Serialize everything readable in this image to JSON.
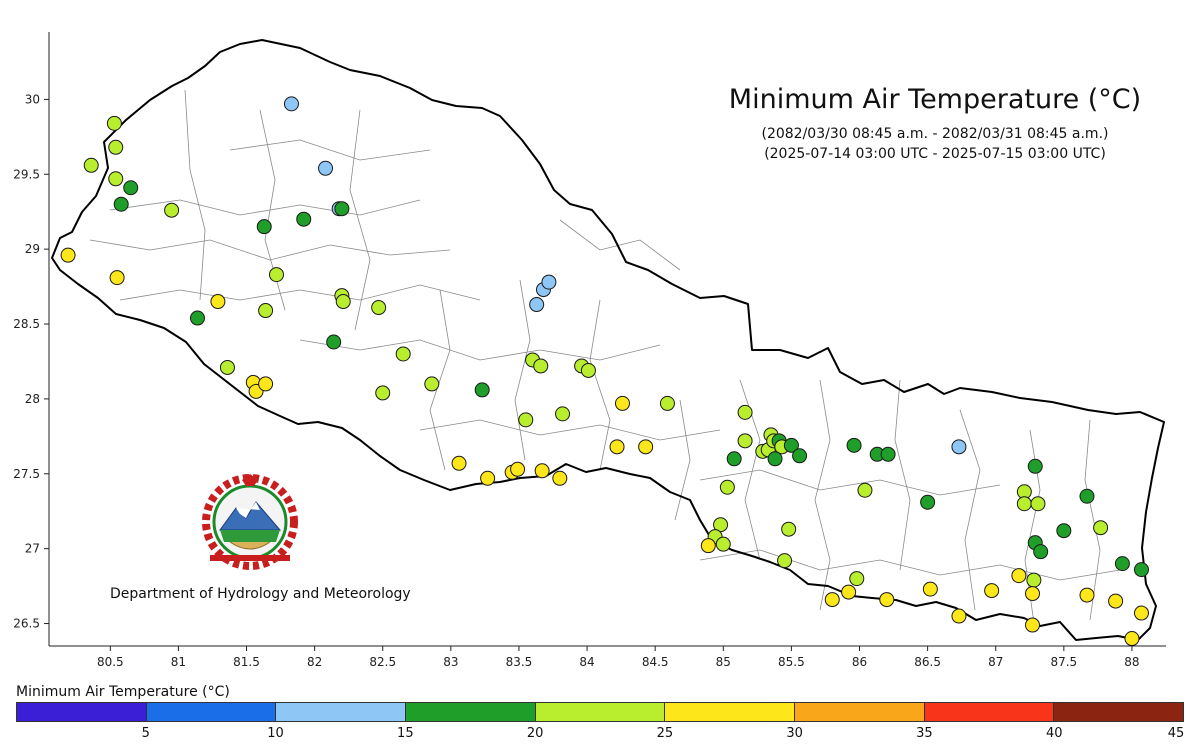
{
  "title": "Minimum Air Temperature (°C)",
  "subtitle_nepali": "(2082/03/30 08:45 a.m. - 2082/03/31 08:45 a.m.)",
  "subtitle_utc": "(2025-07-14 03:00 UTC - 2025-07-15 03:00 UTC)",
  "credit": "Department of Hydrology and Meteorology",
  "legend": {
    "title": "Minimum Air Temperature (°C)",
    "bins": [
      {
        "min": 0,
        "max": 5,
        "color": "#3a1fd6"
      },
      {
        "min": 5,
        "max": 10,
        "color": "#1a6fe8"
      },
      {
        "min": 10,
        "max": 15,
        "color": "#8ec6f5"
      },
      {
        "min": 15,
        "max": 20,
        "color": "#1f9e2a"
      },
      {
        "min": 20,
        "max": 25,
        "color": "#b8ee2e"
      },
      {
        "min": 25,
        "max": 30,
        "color": "#fde619"
      },
      {
        "min": 30,
        "max": 35,
        "color": "#f9a61a"
      },
      {
        "min": 35,
        "max": 40,
        "color": "#f8341a"
      },
      {
        "min": 40,
        "max": 45,
        "color": "#8b2512"
      }
    ],
    "tick_labels": [
      "5",
      "10",
      "15",
      "20",
      "25",
      "30",
      "35",
      "40",
      "45"
    ]
  },
  "axes": {
    "x_ticks": [
      80.5,
      81,
      81.5,
      82,
      82.5,
      83,
      83.5,
      84,
      84.5,
      85,
      85.5,
      86,
      86.5,
      87,
      87.5,
      88
    ],
    "x_tick_labels": [
      "80.5",
      "81",
      "81.5",
      "82",
      "82.5",
      "83",
      "83.5",
      "84",
      "84.5",
      "85",
      "85.5",
      "86",
      "86.5",
      "87",
      "87.5",
      "88"
    ],
    "y_ticks": [
      26.5,
      27,
      27.5,
      28,
      28.5,
      29,
      29.5,
      30
    ],
    "y_tick_labels": [
      "26.5",
      "27",
      "27.5",
      "28",
      "28.5",
      "29",
      "29.5",
      "30"
    ],
    "xlim": [
      80.05,
      88.25
    ],
    "ylim": [
      26.35,
      30.45
    ]
  },
  "map_data": {
    "type": "scatter",
    "units": "lon/lat",
    "stations": [
      {
        "lon": 81.83,
        "lat": 29.97,
        "bin": 2
      },
      {
        "lon": 82.08,
        "lat": 29.54,
        "bin": 2
      },
      {
        "lon": 82.18,
        "lat": 29.27,
        "bin": 2
      },
      {
        "lon": 82.2,
        "lat": 29.27,
        "bin": 3
      },
      {
        "lon": 83.63,
        "lat": 28.63,
        "bin": 2
      },
      {
        "lon": 83.68,
        "lat": 28.73,
        "bin": 2
      },
      {
        "lon": 83.72,
        "lat": 28.78,
        "bin": 2
      },
      {
        "lon": 86.73,
        "lat": 27.68,
        "bin": 2
      },
      {
        "lon": 80.53,
        "lat": 29.84,
        "bin": 4
      },
      {
        "lon": 80.54,
        "lat": 29.68,
        "bin": 4
      },
      {
        "lon": 80.36,
        "lat": 29.56,
        "bin": 4
      },
      {
        "lon": 80.54,
        "lat": 29.47,
        "bin": 4
      },
      {
        "lon": 80.65,
        "lat": 29.41,
        "bin": 3
      },
      {
        "lon": 80.58,
        "lat": 29.3,
        "bin": 3
      },
      {
        "lon": 80.95,
        "lat": 29.26,
        "bin": 4
      },
      {
        "lon": 81.63,
        "lat": 29.15,
        "bin": 3
      },
      {
        "lon": 81.92,
        "lat": 29.2,
        "bin": 3
      },
      {
        "lon": 80.19,
        "lat": 28.96,
        "bin": 5
      },
      {
        "lon": 80.55,
        "lat": 28.81,
        "bin": 5
      },
      {
        "lon": 81.72,
        "lat": 28.83,
        "bin": 4
      },
      {
        "lon": 82.2,
        "lat": 28.69,
        "bin": 4
      },
      {
        "lon": 82.21,
        "lat": 28.65,
        "bin": 4
      },
      {
        "lon": 82.47,
        "lat": 28.61,
        "bin": 4
      },
      {
        "lon": 81.29,
        "lat": 28.65,
        "bin": 5
      },
      {
        "lon": 81.64,
        "lat": 28.59,
        "bin": 4
      },
      {
        "lon": 81.14,
        "lat": 28.54,
        "bin": 3
      },
      {
        "lon": 82.14,
        "lat": 28.38,
        "bin": 3
      },
      {
        "lon": 82.65,
        "lat": 28.3,
        "bin": 4
      },
      {
        "lon": 81.36,
        "lat": 28.21,
        "bin": 4
      },
      {
        "lon": 81.55,
        "lat": 28.11,
        "bin": 5
      },
      {
        "lon": 81.57,
        "lat": 28.05,
        "bin": 5
      },
      {
        "lon": 81.64,
        "lat": 28.1,
        "bin": 5
      },
      {
        "lon": 82.5,
        "lat": 28.04,
        "bin": 4
      },
      {
        "lon": 82.86,
        "lat": 28.1,
        "bin": 4
      },
      {
        "lon": 83.23,
        "lat": 28.06,
        "bin": 3
      },
      {
        "lon": 83.6,
        "lat": 28.26,
        "bin": 4
      },
      {
        "lon": 83.66,
        "lat": 28.22,
        "bin": 4
      },
      {
        "lon": 83.96,
        "lat": 28.22,
        "bin": 4
      },
      {
        "lon": 84.01,
        "lat": 28.19,
        "bin": 4
      },
      {
        "lon": 83.55,
        "lat": 27.86,
        "bin": 4
      },
      {
        "lon": 83.82,
        "lat": 27.9,
        "bin": 4
      },
      {
        "lon": 84.26,
        "lat": 27.97,
        "bin": 5
      },
      {
        "lon": 84.59,
        "lat": 27.97,
        "bin": 4
      },
      {
        "lon": 83.06,
        "lat": 27.57,
        "bin": 5
      },
      {
        "lon": 83.27,
        "lat": 27.47,
        "bin": 5
      },
      {
        "lon": 83.45,
        "lat": 27.51,
        "bin": 5
      },
      {
        "lon": 83.49,
        "lat": 27.53,
        "bin": 5
      },
      {
        "lon": 83.67,
        "lat": 27.52,
        "bin": 5
      },
      {
        "lon": 83.8,
        "lat": 27.47,
        "bin": 5
      },
      {
        "lon": 84.22,
        "lat": 27.68,
        "bin": 5
      },
      {
        "lon": 84.43,
        "lat": 27.68,
        "bin": 5
      },
      {
        "lon": 85.16,
        "lat": 27.91,
        "bin": 4
      },
      {
        "lon": 85.16,
        "lat": 27.72,
        "bin": 4
      },
      {
        "lon": 85.08,
        "lat": 27.6,
        "bin": 3
      },
      {
        "lon": 85.29,
        "lat": 27.65,
        "bin": 4
      },
      {
        "lon": 85.33,
        "lat": 27.66,
        "bin": 4
      },
      {
        "lon": 85.35,
        "lat": 27.76,
        "bin": 4
      },
      {
        "lon": 85.37,
        "lat": 27.72,
        "bin": 4
      },
      {
        "lon": 85.41,
        "lat": 27.72,
        "bin": 3
      },
      {
        "lon": 85.43,
        "lat": 27.68,
        "bin": 4
      },
      {
        "lon": 85.38,
        "lat": 27.6,
        "bin": 3
      },
      {
        "lon": 85.5,
        "lat": 27.69,
        "bin": 3
      },
      {
        "lon": 85.56,
        "lat": 27.62,
        "bin": 3
      },
      {
        "lon": 85.96,
        "lat": 27.69,
        "bin": 3
      },
      {
        "lon": 86.13,
        "lat": 27.63,
        "bin": 3
      },
      {
        "lon": 86.21,
        "lat": 27.63,
        "bin": 3
      },
      {
        "lon": 86.04,
        "lat": 27.39,
        "bin": 4
      },
      {
        "lon": 86.5,
        "lat": 27.31,
        "bin": 3
      },
      {
        "lon": 85.03,
        "lat": 27.41,
        "bin": 4
      },
      {
        "lon": 85.48,
        "lat": 27.13,
        "bin": 4
      },
      {
        "lon": 84.98,
        "lat": 27.16,
        "bin": 4
      },
      {
        "lon": 84.94,
        "lat": 27.08,
        "bin": 4
      },
      {
        "lon": 85.0,
        "lat": 27.03,
        "bin": 4
      },
      {
        "lon": 84.89,
        "lat": 27.02,
        "bin": 5
      },
      {
        "lon": 85.45,
        "lat": 26.92,
        "bin": 4
      },
      {
        "lon": 85.98,
        "lat": 26.8,
        "bin": 4
      },
      {
        "lon": 85.8,
        "lat": 26.66,
        "bin": 5
      },
      {
        "lon": 85.92,
        "lat": 26.71,
        "bin": 5
      },
      {
        "lon": 86.2,
        "lat": 26.66,
        "bin": 5
      },
      {
        "lon": 86.52,
        "lat": 26.73,
        "bin": 5
      },
      {
        "lon": 86.73,
        "lat": 26.55,
        "bin": 5
      },
      {
        "lon": 86.97,
        "lat": 26.72,
        "bin": 5
      },
      {
        "lon": 87.17,
        "lat": 26.82,
        "bin": 5
      },
      {
        "lon": 87.28,
        "lat": 26.79,
        "bin": 4
      },
      {
        "lon": 87.27,
        "lat": 26.7,
        "bin": 5
      },
      {
        "lon": 87.27,
        "lat": 26.49,
        "bin": 5
      },
      {
        "lon": 87.21,
        "lat": 27.38,
        "bin": 4
      },
      {
        "lon": 87.21,
        "lat": 27.3,
        "bin": 4
      },
      {
        "lon": 87.31,
        "lat": 27.3,
        "bin": 4
      },
      {
        "lon": 87.29,
        "lat": 27.55,
        "bin": 3
      },
      {
        "lon": 87.29,
        "lat": 27.04,
        "bin": 3
      },
      {
        "lon": 87.33,
        "lat": 26.98,
        "bin": 3
      },
      {
        "lon": 87.5,
        "lat": 27.12,
        "bin": 3
      },
      {
        "lon": 87.67,
        "lat": 27.35,
        "bin": 3
      },
      {
        "lon": 87.77,
        "lat": 27.14,
        "bin": 4
      },
      {
        "lon": 87.67,
        "lat": 26.69,
        "bin": 5
      },
      {
        "lon": 87.88,
        "lat": 26.65,
        "bin": 5
      },
      {
        "lon": 87.93,
        "lat": 26.9,
        "bin": 3
      },
      {
        "lon": 88.07,
        "lat": 26.86,
        "bin": 3
      },
      {
        "lon": 88.07,
        "lat": 26.57,
        "bin": 5
      },
      {
        "lon": 88.0,
        "lat": 26.4,
        "bin": 5
      }
    ]
  },
  "colors": {
    "border": "#000000",
    "district_line": "#888888",
    "axis": "#222222"
  }
}
